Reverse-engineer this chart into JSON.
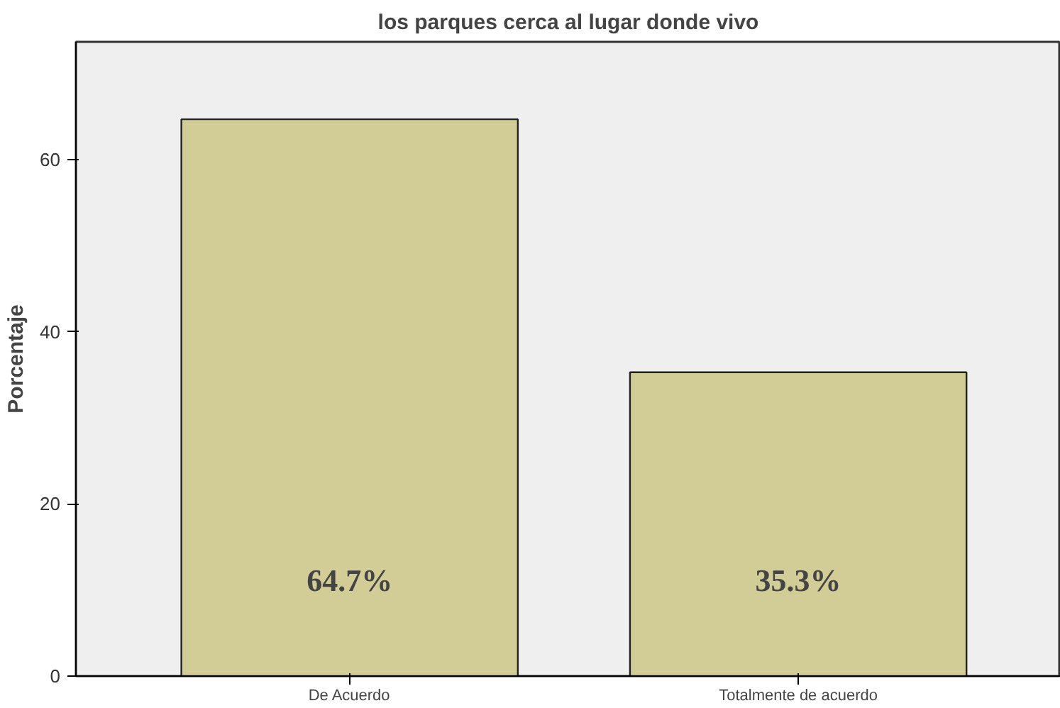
{
  "chart_data": {
    "type": "bar",
    "title": "los parques cerca al lugar donde vivo",
    "ylabel": "Porcentaje",
    "categories": [
      "De Acuerdo",
      "Totalmente de acuerdo"
    ],
    "values": [
      64.7,
      35.3
    ],
    "value_labels": [
      "64.7%",
      "35.3%"
    ],
    "color": "#d2cd96",
    "ylim": [
      0,
      73.7
    ],
    "yticks": [
      0,
      20,
      40,
      60
    ],
    "grid": false
  }
}
